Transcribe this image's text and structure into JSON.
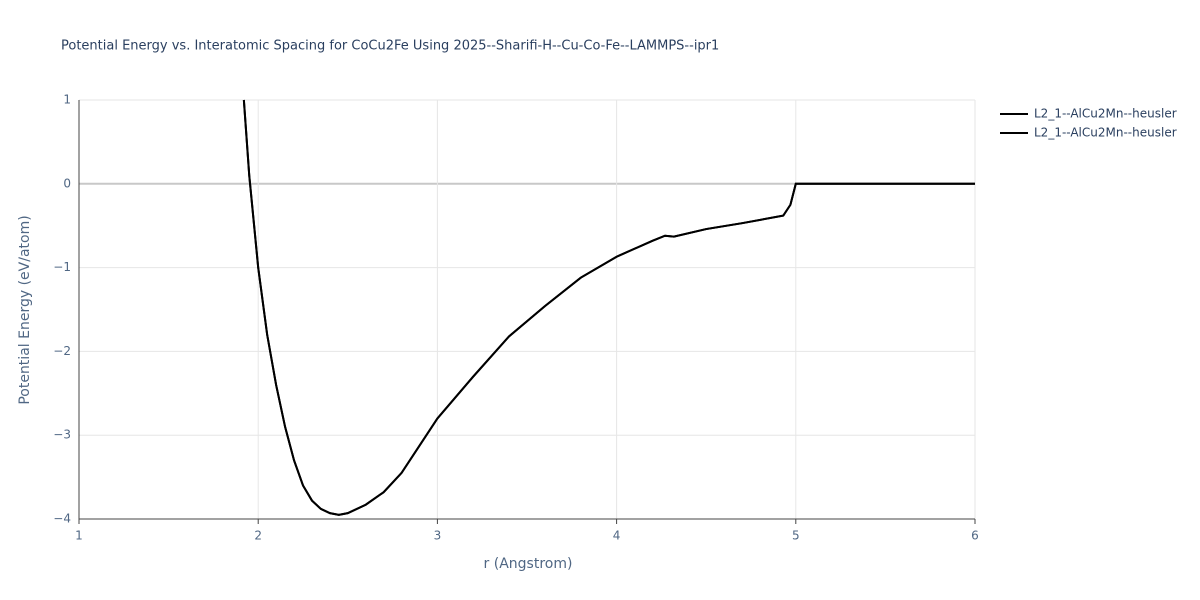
{
  "chart_data": {
    "type": "line",
    "title": "Potential Energy vs. Interatomic Spacing for CoCu2Fe Using 2025--Sharifi-H--Cu-Co-Fe--LAMMPS--ipr1",
    "x_label": "r (Angstrom)",
    "y_label": "Potential Energy (eV/atom)",
    "x": [
      1.92,
      1.95,
      2.0,
      2.05,
      2.1,
      2.15,
      2.2,
      2.25,
      2.3,
      2.35,
      2.4,
      2.45,
      2.5,
      2.6,
      2.7,
      2.8,
      3.0,
      3.2,
      3.4,
      3.6,
      3.8,
      4.0,
      4.2,
      4.27,
      4.32,
      4.5,
      4.7,
      4.93,
      4.97,
      5.0,
      6.0
    ],
    "series": [
      {
        "name": "L2_1--AlCu2Mn--heusler",
        "color": "#000000",
        "values": [
          1.0,
          0.1,
          -1.0,
          -1.8,
          -2.4,
          -2.9,
          -3.3,
          -3.6,
          -3.78,
          -3.88,
          -3.93,
          -3.95,
          -3.93,
          -3.83,
          -3.68,
          -3.45,
          -2.8,
          -2.3,
          -1.82,
          -1.46,
          -1.12,
          -0.87,
          -0.68,
          -0.62,
          -0.63,
          -0.54,
          -0.47,
          -0.38,
          -0.25,
          0,
          0
        ]
      },
      {
        "name": "L2_1--AlCu2Mn--heusler",
        "color": "#000000",
        "values": [
          1.0,
          0.1,
          -1.0,
          -1.8,
          -2.4,
          -2.9,
          -3.3,
          -3.6,
          -3.78,
          -3.88,
          -3.93,
          -3.95,
          -3.93,
          -3.83,
          -3.68,
          -3.45,
          -2.8,
          -2.3,
          -1.82,
          -1.46,
          -1.12,
          -0.87,
          -0.68,
          -0.62,
          -0.63,
          -0.54,
          -0.47,
          -0.38,
          -0.25,
          0,
          0
        ]
      }
    ],
    "xlim": [
      1,
      6
    ],
    "xticks": [
      1,
      2,
      3,
      4,
      5,
      6
    ],
    "ylim": [
      -4,
      1
    ],
    "yticks": [
      {
        "value": -4,
        "label": "−4"
      },
      {
        "value": -3,
        "label": "−3"
      },
      {
        "value": -2,
        "label": "−2"
      },
      {
        "value": -1,
        "label": "−1"
      },
      0,
      1
    ],
    "grid": true
  }
}
